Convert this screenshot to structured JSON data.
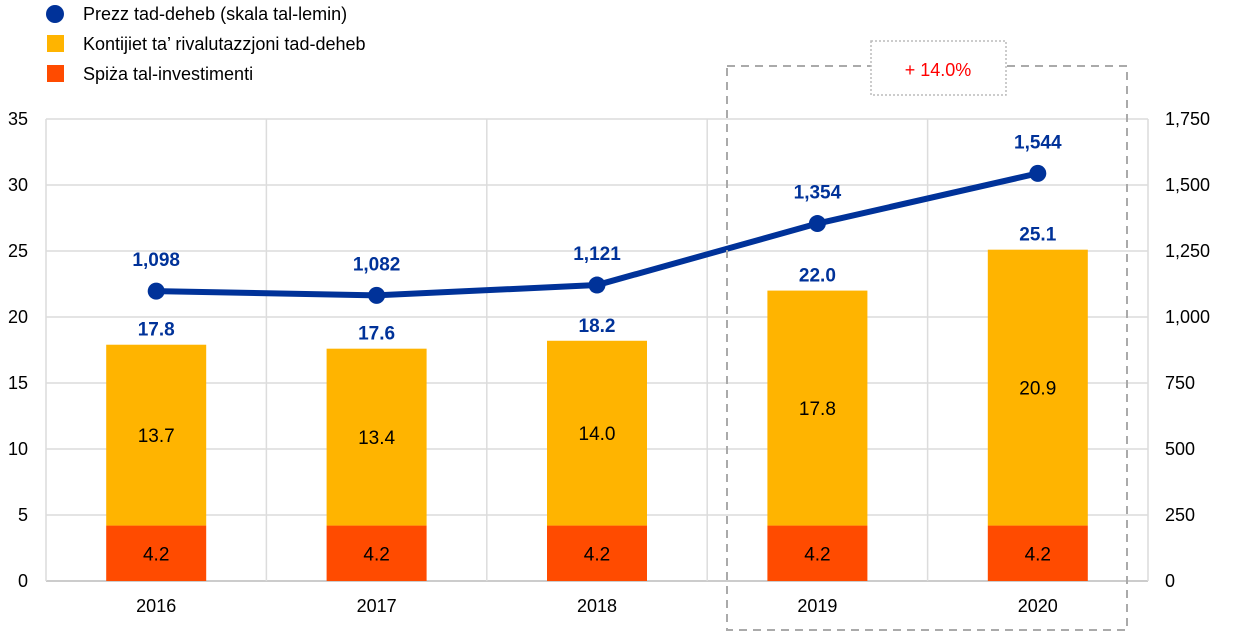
{
  "chart_data": {
    "type": "bar",
    "categories": [
      "2016",
      "2017",
      "2018",
      "2019",
      "2020"
    ],
    "series": [
      {
        "name": "Spiża tal-investimenti",
        "kind": "stacked-bar",
        "axis": "left",
        "color": "#FF4B00",
        "values": [
          4.2,
          4.2,
          4.2,
          4.2,
          4.2
        ],
        "labels": [
          "4.2",
          "4.2",
          "4.2",
          "4.2",
          "4.2"
        ]
      },
      {
        "name": "Kontijiet ta’ rivalutazzjoni tad-deheb",
        "kind": "stacked-bar",
        "axis": "left",
        "color": "#FFB400",
        "values": [
          13.7,
          13.4,
          14.0,
          17.8,
          20.9
        ],
        "labels": [
          "13.7",
          "13.4",
          "14.0",
          "17.8",
          "20.9"
        ]
      },
      {
        "name": "Prezz tad-deheb (skala tal-lemin)",
        "kind": "line",
        "axis": "right",
        "color": "#003299",
        "values": [
          1098,
          1082,
          1121,
          1354,
          1544
        ],
        "labels": [
          "1,098",
          "1,082",
          "1,121",
          "1,354",
          "1,544"
        ]
      }
    ],
    "totals": [
      "17.8",
      "17.6",
      "18.2",
      "22.0",
      "25.1"
    ],
    "left_axis": {
      "ylim": [
        0,
        35
      ],
      "ticks": [
        "0",
        "5",
        "10",
        "15",
        "20",
        "25",
        "30",
        "35"
      ]
    },
    "right_axis": {
      "ylim": [
        0,
        1750
      ],
      "ticks": [
        "0",
        "250",
        "500",
        "750",
        "1,000",
        "1,250",
        "1,500",
        "1,750"
      ]
    },
    "grid": true,
    "legend_placement": "top-left",
    "annotation": {
      "text": "+ 14.0%",
      "color": "#FF0000",
      "highlight_categories": [
        "2019",
        "2020"
      ]
    }
  }
}
